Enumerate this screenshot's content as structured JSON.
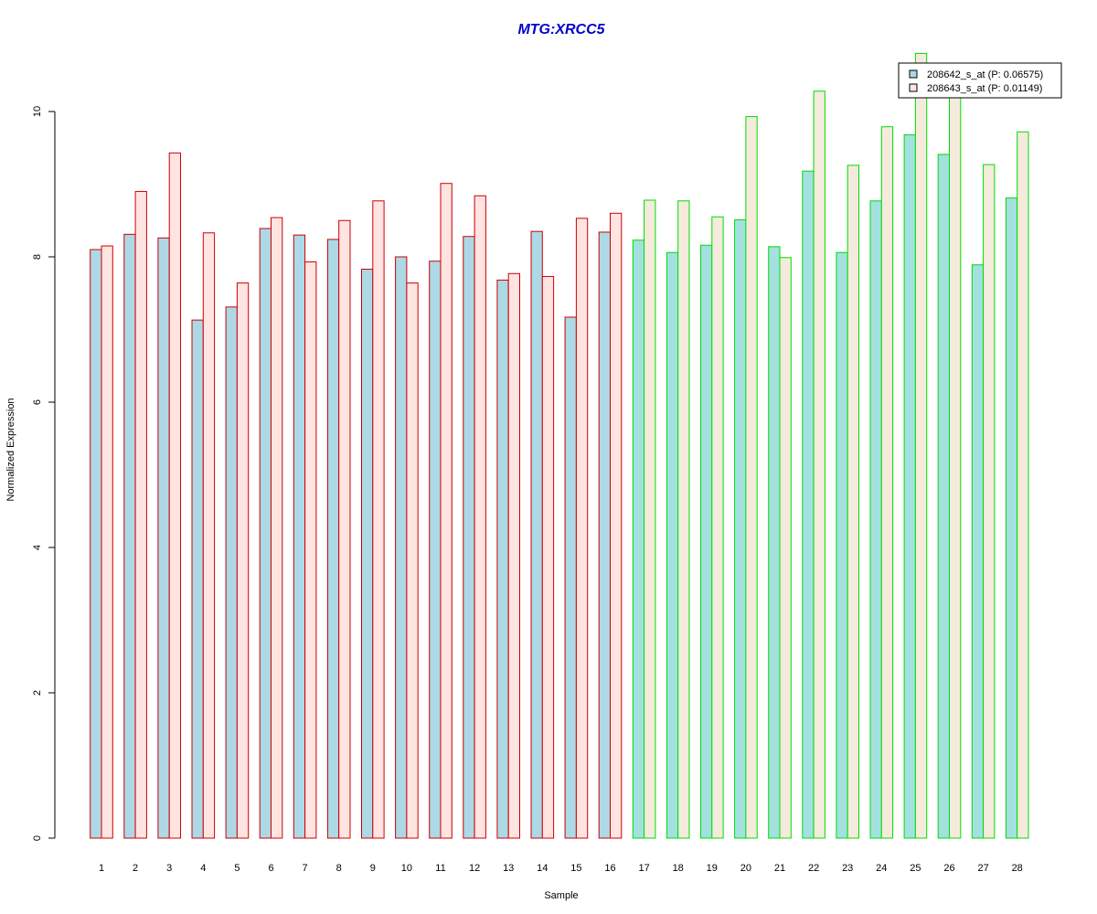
{
  "chart_data": {
    "type": "bar",
    "title": "MTG:XRCC5",
    "xlabel": "Sample",
    "ylabel": "Normalized Expression",
    "ylim": [
      0,
      10.8
    ],
    "yticks": [
      0,
      2,
      4,
      6,
      8,
      10
    ],
    "categories": [
      "1",
      "2",
      "3",
      "4",
      "5",
      "6",
      "7",
      "8",
      "9",
      "10",
      "11",
      "12",
      "13",
      "14",
      "15",
      "16",
      "17",
      "18",
      "19",
      "20",
      "21",
      "22",
      "23",
      "24",
      "25",
      "26",
      "27",
      "28"
    ],
    "series": [
      {
        "name": "208642_s_at (P: 0.06575)",
        "values": [
          8.1,
          8.31,
          8.26,
          7.13,
          7.31,
          8.39,
          8.3,
          8.24,
          7.83,
          8.0,
          7.94,
          8.28,
          7.68,
          8.35,
          7.17,
          8.34,
          8.23,
          8.06,
          8.16,
          8.51,
          8.14,
          9.18,
          8.06,
          8.77,
          9.68,
          9.41,
          7.89,
          8.81
        ]
      },
      {
        "name": "208643_s_at (P: 0.01149)",
        "values": [
          8.15,
          8.9,
          9.43,
          8.33,
          7.64,
          8.54,
          7.93,
          8.5,
          8.77,
          7.64,
          9.01,
          8.84,
          7.77,
          7.73,
          8.53,
          8.6,
          8.78,
          8.77,
          8.55,
          9.93,
          7.99,
          10.28,
          9.26,
          9.79,
          10.8,
          10.3,
          9.27,
          9.72
        ]
      }
    ],
    "group_colors": {
      "group1_border": "#cc0000",
      "group2_border": "#00dd00"
    },
    "group_split_after": 16,
    "fill_colors": {
      "series1_group1": "#add8e6",
      "series1_group2": "#a3e0e0",
      "series2_group1": "#ffe4e1",
      "series2_group2": "#f5ebdc"
    },
    "title_color": "#0000cc",
    "legend_position": "top-right",
    "grid": false
  }
}
